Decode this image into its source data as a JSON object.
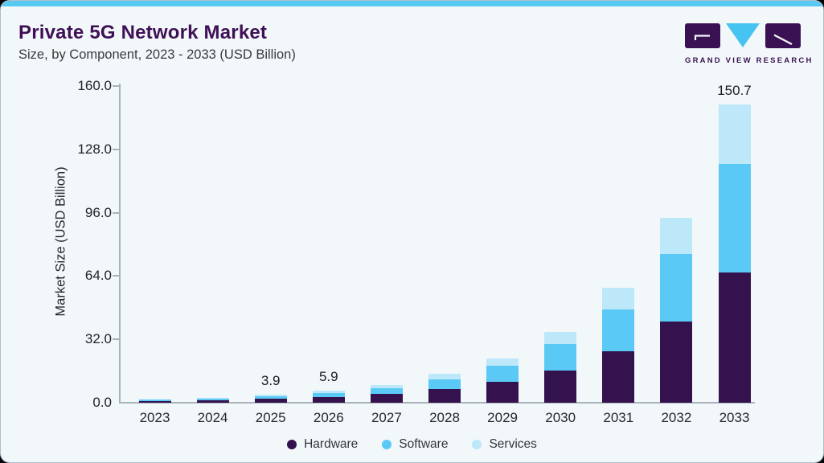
{
  "header": {
    "title": "Private 5G Network Market",
    "subtitle": "Size, by Component, 2023 - 2033 (USD Billion)"
  },
  "logo": {
    "text": "GRAND VIEW RESEARCH",
    "brand_purple": "#3A1253",
    "brand_blue": "#45C3F1"
  },
  "chart_data": {
    "type": "bar",
    "stacked": true,
    "title": "Private 5G Network Market Size, by Component, 2023 - 2033 (USD Billion)",
    "categories": [
      "2023",
      "2024",
      "2025",
      "2026",
      "2027",
      "2028",
      "2029",
      "2030",
      "2031",
      "2032",
      "2033"
    ],
    "series": [
      {
        "name": "Hardware",
        "color": "#33124D",
        "values": [
          0.9,
          1.3,
          1.9,
          2.8,
          4.3,
          6.8,
          10.6,
          16.3,
          26.1,
          41.2,
          65.6
        ]
      },
      {
        "name": "Software",
        "color": "#5BC9F6",
        "values": [
          0.6,
          0.9,
          1.3,
          2.0,
          3.1,
          5.0,
          8.0,
          13.2,
          21.0,
          33.9,
          55.2
        ]
      },
      {
        "name": "Services",
        "color": "#BDE8FA",
        "values": [
          0.3,
          0.4,
          0.7,
          1.1,
          1.7,
          2.7,
          3.9,
          6.4,
          10.8,
          18.2,
          29.9
        ]
      }
    ],
    "totals": [
      1.8,
      2.6,
      3.9,
      5.9,
      9.1,
      14.5,
      22.5,
      35.9,
      57.9,
      93.3,
      150.7
    ],
    "data_labels": [
      null,
      null,
      "3.9",
      "5.9",
      null,
      null,
      null,
      null,
      null,
      null,
      "150.7"
    ],
    "xlabel": "",
    "ylabel": "Market Size (USD Billion)",
    "ylim": [
      0,
      160
    ],
    "yticks": [
      0,
      32,
      64,
      96,
      128,
      160
    ],
    "ytick_labels": [
      "0.0",
      "32.0",
      "64.0",
      "96.0",
      "128.0",
      "160.0"
    ],
    "grid": false,
    "legend_position": "bottom",
    "legend": [
      "Hardware",
      "Software",
      "Services"
    ]
  }
}
